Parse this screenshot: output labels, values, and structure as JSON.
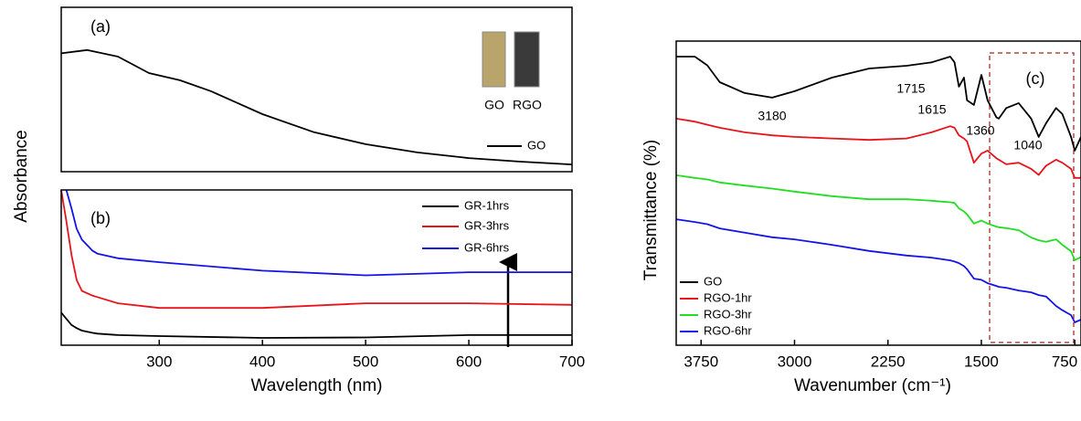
{
  "chart_data": [
    {
      "type": "line",
      "panel_label": "(a)",
      "ylabel": "Absorbance",
      "inset_labels": [
        "GO",
        "RGO"
      ],
      "xlim": [
        205,
        700
      ],
      "ylim": [
        0,
        1
      ],
      "x": [
        205,
        230,
        260,
        290,
        320,
        350,
        400,
        450,
        500,
        550,
        600,
        650,
        700
      ],
      "series": [
        {
          "name": "GO",
          "color": "#000000",
          "values": [
            0.72,
            0.74,
            0.7,
            0.6,
            0.556,
            0.49,
            0.35,
            0.24,
            0.167,
            0.117,
            0.083,
            0.061,
            0.044
          ]
        }
      ]
    },
    {
      "type": "line",
      "panel_label": "(b)",
      "xlabel": "Wavelength (nm)",
      "xlim": [
        205,
        700
      ],
      "ylim": [
        0,
        1
      ],
      "xticks": [
        300,
        400,
        500,
        600,
        700
      ],
      "x": [
        205,
        210,
        215,
        220,
        225,
        235,
        240,
        260,
        300,
        400,
        500,
        600,
        700
      ],
      "series": [
        {
          "name": "GR-1hrs",
          "color": "#000000",
          "values": [
            0.21,
            0.17,
            0.13,
            0.11,
            0.094,
            0.08,
            0.075,
            0.065,
            0.059,
            0.047,
            0.05,
            0.065,
            0.065
          ]
        },
        {
          "name": "GR-3hrs",
          "color": "#e8141b",
          "values": [
            1.0,
            0.8,
            0.58,
            0.42,
            0.35,
            0.32,
            0.31,
            0.27,
            0.24,
            0.24,
            0.27,
            0.27,
            0.26
          ]
        },
        {
          "name": "GR-6hrs",
          "color": "#1414e6",
          "values": [
            null,
            1.0,
            0.88,
            0.75,
            0.68,
            0.61,
            0.59,
            0.56,
            0.535,
            0.48,
            0.45,
            0.47,
            0.47
          ]
        }
      ]
    },
    {
      "type": "line",
      "panel_label": "(c)",
      "xlabel": "Wavenumber (cm⁻¹)",
      "ylabel": "Transmittance (%)",
      "annotations": [
        "3180",
        "1715",
        "1615",
        "1360",
        "1040"
      ],
      "xlim": [
        3950,
        700
      ],
      "ylim": [
        0,
        1
      ],
      "xticks": [
        3750,
        3000,
        2250,
        1500,
        750
      ],
      "x": [
        3950,
        3800,
        3700,
        3600,
        3400,
        3180,
        3000,
        2700,
        2400,
        2100,
        1900,
        1750,
        1715,
        1680,
        1640,
        1615,
        1560,
        1500,
        1450,
        1380,
        1360,
        1300,
        1200,
        1100,
        1040,
        980,
        900,
        850,
        780,
        750,
        700
      ],
      "series": [
        {
          "name": "GO",
          "color": "#000000",
          "values": [
            0.949,
            0.949,
            0.92,
            0.865,
            0.829,
            0.814,
            0.835,
            0.88,
            0.91,
            0.919,
            0.93,
            0.949,
            0.93,
            0.85,
            0.88,
            0.805,
            0.79,
            0.889,
            0.805,
            0.75,
            0.745,
            0.78,
            0.796,
            0.745,
            0.685,
            0.73,
            0.78,
            0.76,
            0.685,
            0.64,
            0.685
          ]
        },
        {
          "name": "RGO-1hr",
          "color": "#e8141b",
          "values": [
            0.745,
            0.735,
            0.725,
            0.715,
            0.7,
            0.69,
            0.685,
            0.68,
            0.675,
            0.68,
            0.7,
            0.72,
            0.715,
            0.69,
            0.68,
            0.67,
            0.6,
            0.63,
            0.64,
            0.615,
            0.61,
            0.595,
            0.6,
            0.58,
            0.56,
            0.59,
            0.61,
            0.6,
            0.58,
            0.55,
            0.55
          ]
        },
        {
          "name": "RGO-3hr",
          "color": "#22dd22",
          "values": [
            0.559,
            0.55,
            0.545,
            0.535,
            0.525,
            0.515,
            0.505,
            0.49,
            0.48,
            0.48,
            0.475,
            0.47,
            0.468,
            0.45,
            0.44,
            0.43,
            0.4,
            0.41,
            0.4,
            0.39,
            0.388,
            0.385,
            0.378,
            0.354,
            0.345,
            0.34,
            0.348,
            0.33,
            0.309,
            0.28,
            0.29
          ]
        },
        {
          "name": "RGO-6hr",
          "color": "#1414e6",
          "values": [
            0.414,
            0.405,
            0.398,
            0.384,
            0.37,
            0.355,
            0.348,
            0.33,
            0.31,
            0.295,
            0.288,
            0.279,
            0.275,
            0.27,
            0.26,
            0.25,
            0.219,
            0.215,
            0.204,
            0.195,
            0.192,
            0.189,
            0.18,
            0.174,
            0.165,
            0.16,
            0.129,
            0.115,
            0.099,
            0.075,
            0.084
          ]
        }
      ]
    }
  ]
}
